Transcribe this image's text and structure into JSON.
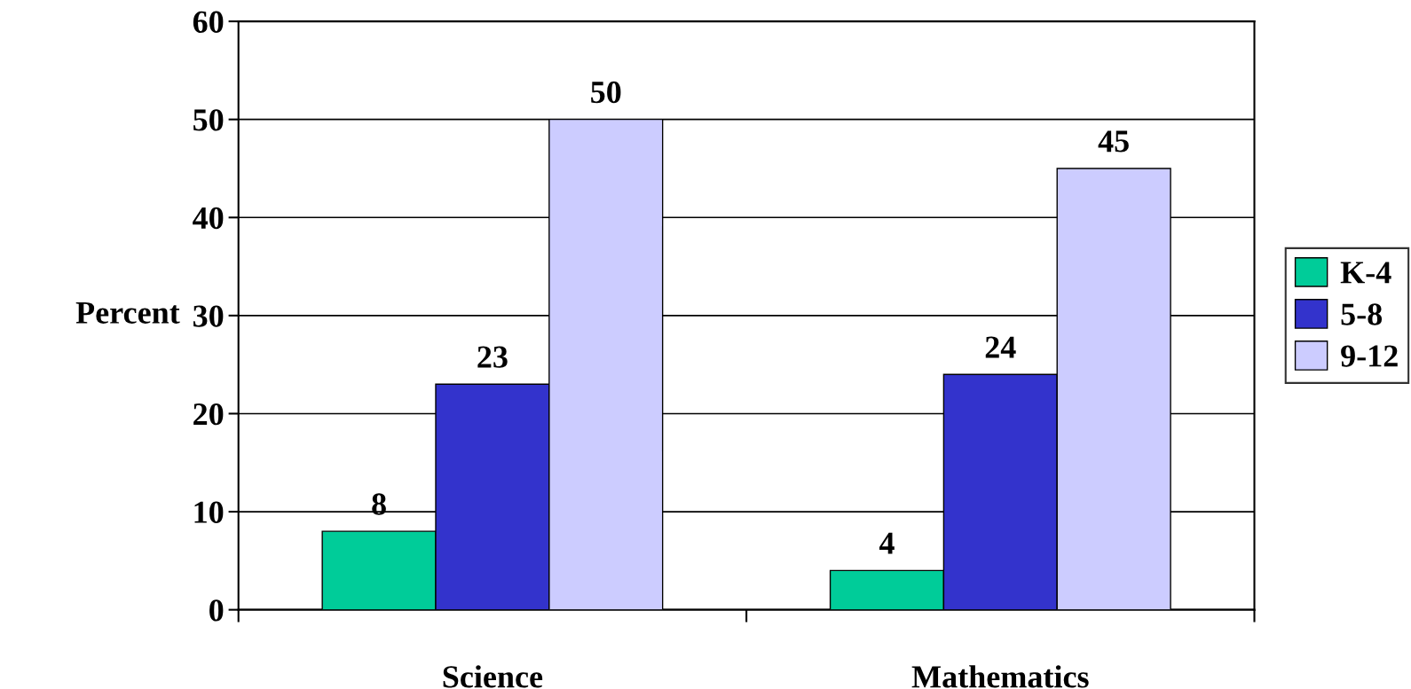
{
  "chart_data": {
    "type": "bar",
    "ylabel": "Percent",
    "categories": [
      "Science",
      "Mathematics"
    ],
    "series": [
      {
        "name": "K-4",
        "color": "#00cc99",
        "values": [
          8,
          4
        ]
      },
      {
        "name": "5-8",
        "color": "#3333cc",
        "values": [
          23,
          24
        ]
      },
      {
        "name": "9-12",
        "color": "#ccccff",
        "values": [
          50,
          45
        ]
      }
    ],
    "ylim": [
      0,
      60
    ],
    "yticks": [
      0,
      10,
      20,
      30,
      40,
      50,
      60
    ],
    "grid": "y",
    "legend": "right",
    "data_labels": true
  }
}
